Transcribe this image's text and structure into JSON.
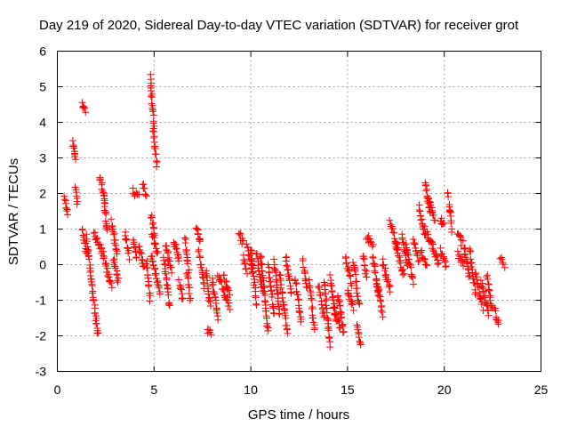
{
  "chart_data": {
    "type": "scatter",
    "title": "Day 219 of 2020, Sidereal Day-to-day VTEC variation (SDTVAR) for receiver grot",
    "xlabel": "GPS time / hours",
    "ylabel": "SDTVAR / TECUs",
    "xlim": [
      0,
      25
    ],
    "ylim": [
      -3,
      6
    ],
    "xticks": [
      0,
      5,
      10,
      15,
      20,
      25
    ],
    "yticks": [
      -3,
      -2,
      -1,
      0,
      1,
      2,
      3,
      4,
      5,
      6
    ],
    "xtick_labels": [
      "0",
      "5",
      "10",
      "15",
      "20",
      "25"
    ],
    "ytick_labels": [
      "-3",
      "-2",
      "-1",
      "0",
      "1",
      "2",
      "3",
      "4",
      "5",
      "6"
    ],
    "grid": true,
    "marker": "plus",
    "color": "#ff0000",
    "segments": [
      [
        0.35,
        0.55,
        1.9,
        1.4
      ],
      [
        0.8,
        0.95,
        3.5,
        2.9
      ],
      [
        0.95,
        1.05,
        2.2,
        1.7
      ],
      [
        1.3,
        1.45,
        4.5,
        4.3
      ],
      [
        1.3,
        1.5,
        1.0,
        0.3
      ],
      [
        1.5,
        2.1,
        0.8,
        -2.0
      ],
      [
        1.9,
        2.3,
        0.9,
        0.4
      ],
      [
        2.2,
        2.45,
        2.5,
        1.8
      ],
      [
        2.4,
        2.6,
        1.9,
        0.9
      ],
      [
        2.3,
        2.8,
        0.4,
        -0.6
      ],
      [
        2.8,
        3.1,
        1.2,
        0.3
      ],
      [
        2.9,
        3.15,
        0.2,
        -0.5
      ],
      [
        3.5,
        3.7,
        0.9,
        0.2
      ],
      [
        3.9,
        4.1,
        0.7,
        0.2
      ],
      [
        3.9,
        4.2,
        2.1,
        1.9
      ],
      [
        4.2,
        4.5,
        0.5,
        -0.1
      ],
      [
        4.4,
        4.6,
        2.3,
        1.9
      ],
      [
        4.6,
        4.8,
        0.1,
        -1.0
      ],
      [
        4.8,
        5.0,
        5.3,
        3.8
      ],
      [
        4.95,
        5.15,
        3.8,
        2.8
      ],
      [
        4.85,
        5.05,
        1.4,
        0.9
      ],
      [
        4.9,
        5.2,
        0.9,
        0.3
      ],
      [
        4.85,
        5.3,
        0.3,
        -0.8
      ],
      [
        5.5,
        5.8,
        0.2,
        -1.2
      ],
      [
        5.6,
        5.9,
        0.6,
        -0.2
      ],
      [
        6.0,
        6.3,
        0.7,
        0.1
      ],
      [
        6.3,
        6.5,
        -0.5,
        -1.0
      ],
      [
        6.6,
        6.8,
        0.7,
        -0.2
      ],
      [
        6.7,
        6.9,
        -0.2,
        -1.0
      ],
      [
        7.2,
        7.4,
        1.1,
        0.6
      ],
      [
        7.3,
        7.6,
        0.4,
        -0.6
      ],
      [
        7.7,
        7.9,
        -0.2,
        -1.2
      ],
      [
        7.75,
        7.95,
        -1.8,
        -2.0
      ],
      [
        8.0,
        8.3,
        -0.4,
        -1.5
      ],
      [
        8.3,
        8.9,
        -0.3,
        -1.2
      ],
      [
        8.6,
        8.9,
        -0.3,
        -0.8
      ],
      [
        9.4,
        9.6,
        0.9,
        0.6
      ],
      [
        9.6,
        9.8,
        0.2,
        -0.2
      ],
      [
        9.8,
        10.1,
        0.6,
        -0.2
      ],
      [
        10.0,
        10.3,
        0.5,
        -1.1
      ],
      [
        10.3,
        10.6,
        0.3,
        -0.7
      ],
      [
        10.5,
        10.9,
        0.3,
        -1.9
      ],
      [
        10.9,
        11.2,
        0.0,
        -1.4
      ],
      [
        11.2,
        11.5,
        0.1,
        -1.4
      ],
      [
        11.5,
        11.9,
        -0.3,
        -1.9
      ],
      [
        11.8,
        12.1,
        0.2,
        -0.8
      ],
      [
        12.3,
        12.6,
        -0.4,
        -1.6
      ],
      [
        12.7,
        12.9,
        0.1,
        -0.7
      ],
      [
        13.0,
        13.3,
        -0.5,
        -1.8
      ],
      [
        13.5,
        13.8,
        -0.6,
        -1.5
      ],
      [
        13.8,
        14.1,
        -0.5,
        -2.3
      ],
      [
        14.1,
        14.4,
        -0.3,
        -1.6
      ],
      [
        14.3,
        14.6,
        -1.2,
        -1.8
      ],
      [
        14.5,
        14.8,
        -0.8,
        -1.9
      ],
      [
        14.9,
        15.2,
        0.2,
        -0.5
      ],
      [
        15.0,
        15.3,
        -0.7,
        -1.2
      ],
      [
        15.3,
        15.6,
        0.1,
        -1.2
      ],
      [
        15.5,
        15.7,
        -1.7,
        -2.3
      ],
      [
        15.8,
        16.0,
        0.3,
        -0.4
      ],
      [
        16.0,
        16.3,
        0.8,
        0.5
      ],
      [
        16.3,
        16.6,
        0.2,
        -0.8
      ],
      [
        16.5,
        16.8,
        -0.4,
        -1.4
      ],
      [
        16.8,
        17.2,
        0.1,
        -0.7
      ],
      [
        17.2,
        17.6,
        1.2,
        0.4
      ],
      [
        17.5,
        17.9,
        0.5,
        -0.3
      ],
      [
        17.8,
        18.1,
        0.8,
        0.0
      ],
      [
        18.0,
        18.4,
        0.6,
        -0.5
      ],
      [
        18.4,
        18.7,
        0.7,
        0.1
      ],
      [
        18.7,
        19.0,
        1.6,
        0.8
      ],
      [
        18.8,
        19.1,
        0.4,
        -0.1
      ],
      [
        19.0,
        19.3,
        2.3,
        1.4
      ],
      [
        19.2,
        19.5,
        1.9,
        1.2
      ],
      [
        19.0,
        19.4,
        1.0,
        0.5
      ],
      [
        19.4,
        19.7,
        0.6,
        0.0
      ],
      [
        19.8,
        20.0,
        1.3,
        1.1
      ],
      [
        19.8,
        20.1,
        0.4,
        -0.1
      ],
      [
        20.2,
        20.4,
        2.0,
        1.0
      ],
      [
        20.7,
        20.9,
        0.9,
        0.6
      ],
      [
        20.7,
        21.0,
        0.3,
        0.0
      ],
      [
        21.0,
        21.3,
        0.6,
        -0.4
      ],
      [
        21.3,
        21.6,
        0.5,
        -0.8
      ],
      [
        21.6,
        22.0,
        -0.2,
        -1.2
      ],
      [
        21.9,
        22.3,
        -0.5,
        -1.4
      ],
      [
        22.2,
        22.5,
        -0.3,
        -1.3
      ],
      [
        22.6,
        22.8,
        -1.2,
        -1.7
      ],
      [
        22.9,
        23.1,
        0.2,
        0.0
      ]
    ]
  }
}
